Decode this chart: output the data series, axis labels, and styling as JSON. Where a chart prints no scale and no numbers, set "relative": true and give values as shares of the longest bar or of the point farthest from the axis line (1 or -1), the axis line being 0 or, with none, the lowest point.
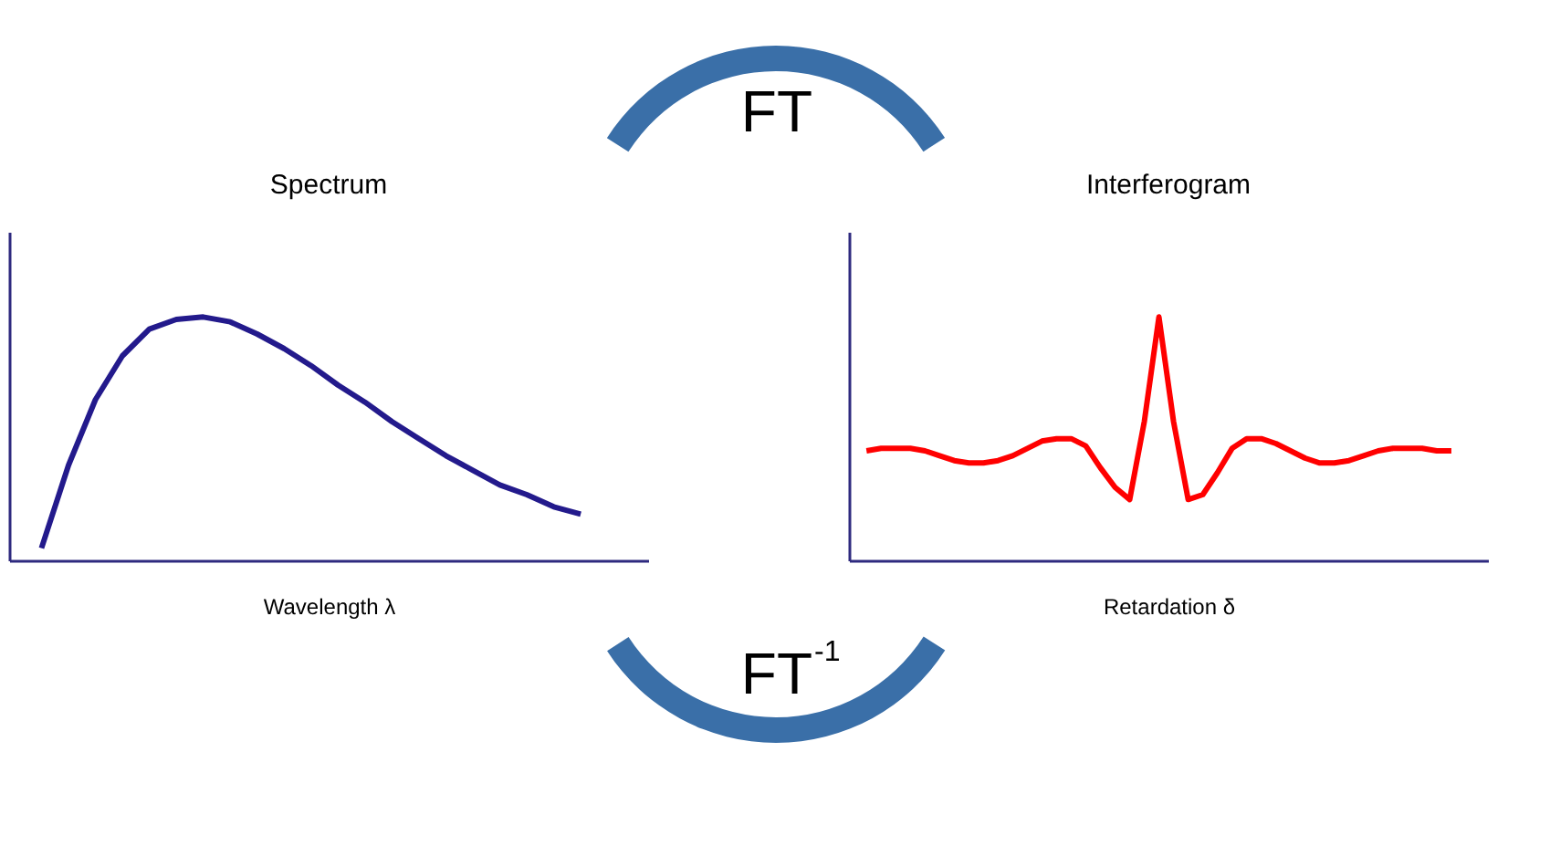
{
  "chart_data": [
    {
      "type": "line",
      "title": "Spectrum",
      "xlabel": "Wavelength λ",
      "relative": true,
      "tick_labels": false,
      "categories": [
        null,
        null,
        null,
        null,
        null,
        null,
        null,
        null,
        null,
        null,
        null,
        null,
        null,
        null,
        null,
        null,
        null,
        null,
        null,
        null,
        null
      ],
      "series": [
        {
          "color": "#231a8c",
          "values": [
            0.05,
            0.39,
            0.66,
            0.84,
            0.95,
            0.99,
            1.0,
            0.98,
            0.93,
            0.87,
            0.8,
            0.72,
            0.65,
            0.57,
            0.5,
            0.43,
            0.37,
            0.31,
            0.27,
            0.22,
            0.19
          ]
        }
      ]
    },
    {
      "type": "line",
      "title": "Interferogram",
      "xlabel": "Retardation δ",
      "relative": true,
      "tick_labels": false,
      "categories": [
        null,
        null,
        null,
        null,
        null,
        null,
        null,
        null,
        null,
        null,
        null,
        null,
        null,
        null,
        null,
        null,
        null,
        null,
        null,
        null,
        null,
        null,
        null,
        null,
        null,
        null,
        null,
        null,
        null,
        null,
        null,
        null,
        null,
        null,
        null,
        null,
        null,
        null,
        null,
        null,
        null
      ],
      "series": [
        {
          "color": "#ff0000",
          "values": [
            0.45,
            0.46,
            0.46,
            0.46,
            0.45,
            0.43,
            0.41,
            0.4,
            0.4,
            0.41,
            0.43,
            0.46,
            0.49,
            0.5,
            0.5,
            0.47,
            0.38,
            0.3,
            0.25,
            0.57,
            1.0,
            0.57,
            0.25,
            0.27,
            0.36,
            0.46,
            0.5,
            0.5,
            0.48,
            0.45,
            0.42,
            0.4,
            0.4,
            0.41,
            0.43,
            0.45,
            0.46,
            0.46,
            0.46,
            0.45,
            0.45
          ]
        }
      ]
    },
    {
      "type": "other",
      "annotations": [
        "FT",
        "FT$^{-1}$"
      ]
    }
  ]
}
